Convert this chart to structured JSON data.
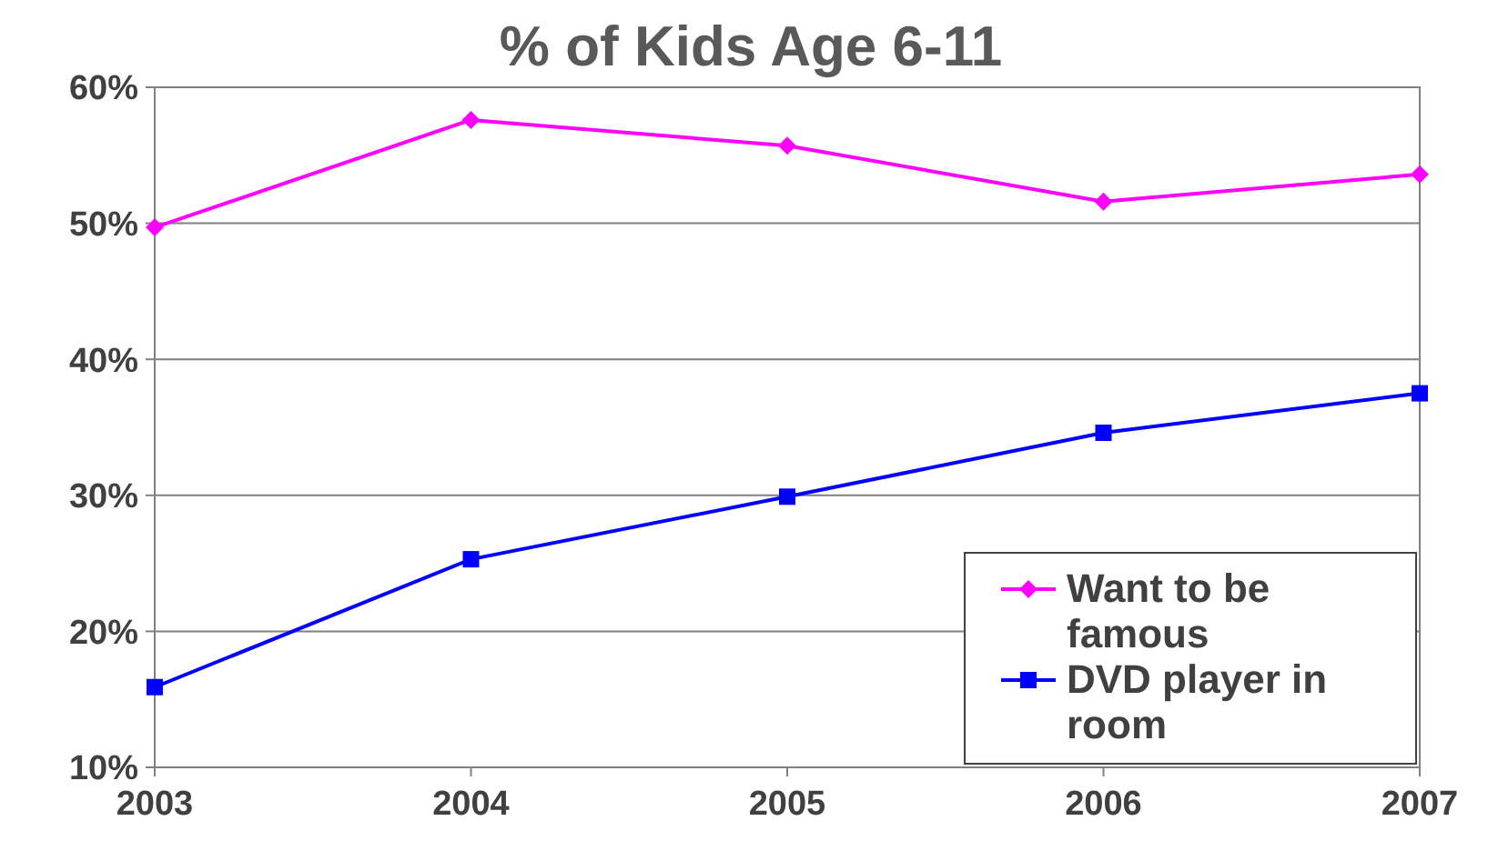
{
  "chart_data": {
    "type": "line",
    "title": "% of Kids Age 6-11",
    "categories": [
      "2003",
      "2004",
      "2005",
      "2006",
      "2007"
    ],
    "series": [
      {
        "name": "Want to be famous",
        "color": "#ff00ff",
        "marker": "diamond",
        "values": [
          49.7,
          57.6,
          55.7,
          51.6,
          53.6
        ]
      },
      {
        "name": "DVD player in room",
        "color": "#0000ff",
        "marker": "square",
        "values": [
          15.9,
          25.3,
          29.9,
          34.6,
          37.5
        ]
      }
    ],
    "ylim": [
      10,
      60
    ],
    "yticks": [
      {
        "value": 10,
        "label": "10%"
      },
      {
        "value": 20,
        "label": "20%"
      },
      {
        "value": 30,
        "label": "30%"
      },
      {
        "value": 40,
        "label": "40%"
      },
      {
        "value": 50,
        "label": "50%"
      },
      {
        "value": 60,
        "label": "60%"
      }
    ],
    "grid": "y",
    "legend": "bottom right"
  }
}
